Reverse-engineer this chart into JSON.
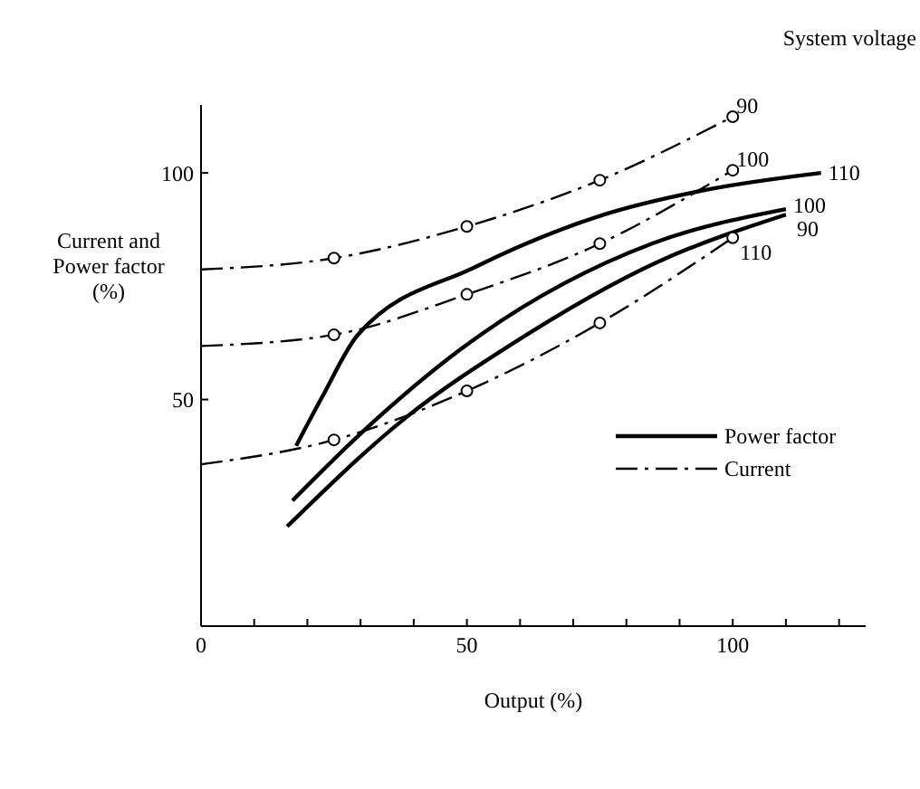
{
  "chart_data": {
    "type": "line",
    "xlabel": "Output (%)",
    "ylabel": "Current and Power factor (%)",
    "legend_title": "System voltage",
    "annotations": [
      "Power factor",
      "Current"
    ],
    "legend": "right",
    "grid": false,
    "xlim": [
      0,
      125
    ],
    "xticks": [
      0,
      {
        "value": 10,
        "label": null
      },
      {
        "value": 20,
        "label": null
      },
      {
        "value": 30,
        "label": null
      },
      {
        "value": 40,
        "label": null
      },
      50,
      {
        "value": 60,
        "label": null
      },
      {
        "value": 70,
        "label": null
      },
      {
        "value": 80,
        "label": null
      },
      {
        "value": 90,
        "label": null
      },
      100,
      {
        "value": 110,
        "label": null
      },
      {
        "value": 120,
        "label": null
      }
    ],
    "ylim": [
      0,
      115
    ],
    "yticks": [
      50,
      100
    ],
    "series": [
      {
        "name": "110",
        "color": "#000000",
        "line_style": "solid",
        "marker": "none",
        "x": [
          17.9,
          22.8,
          29.5,
          51.7,
          75.8,
          94.7,
          116.6
        ],
        "values": [
          39.8,
          50.6,
          64.3,
          79.3,
          90.8,
          96.2,
          100
        ]
      },
      {
        "name": "100",
        "color": "#000000",
        "line_style": "solid",
        "marker": "none",
        "x": [
          17.2,
          30.5,
          52.6,
          84.8,
          110
        ],
        "values": [
          27.7,
          43,
          64.3,
          84.4,
          92
        ]
      },
      {
        "name": "90",
        "color": "#000000",
        "line_style": "solid",
        "marker": "none",
        "x": [
          16.2,
          38.4,
          58.3,
          85.8,
          110
        ],
        "values": [
          22,
          45.9,
          62.1,
          80.3,
          90.8
        ]
      },
      {
        "name": "90",
        "color": "#000000",
        "line_style": "dashed",
        "marker": "circle",
        "x": [
          0,
          25,
          50,
          75,
          100
        ],
        "values": [
          78.7,
          81.2,
          88.2,
          98.4,
          112.4
        ]
      },
      {
        "name": "100",
        "color": "#000000",
        "line_style": "dashed",
        "marker": "circle",
        "x": [
          0,
          25,
          50,
          75,
          100
        ],
        "values": [
          61.8,
          64.3,
          73.2,
          84.4,
          100.6
        ]
      },
      {
        "name": "110",
        "color": "#000000",
        "line_style": "dashed",
        "marker": "circle",
        "x": [
          0,
          25,
          50,
          75,
          100
        ],
        "values": [
          35.7,
          41.1,
          51.9,
          66.9,
          85.7
        ]
      }
    ]
  }
}
